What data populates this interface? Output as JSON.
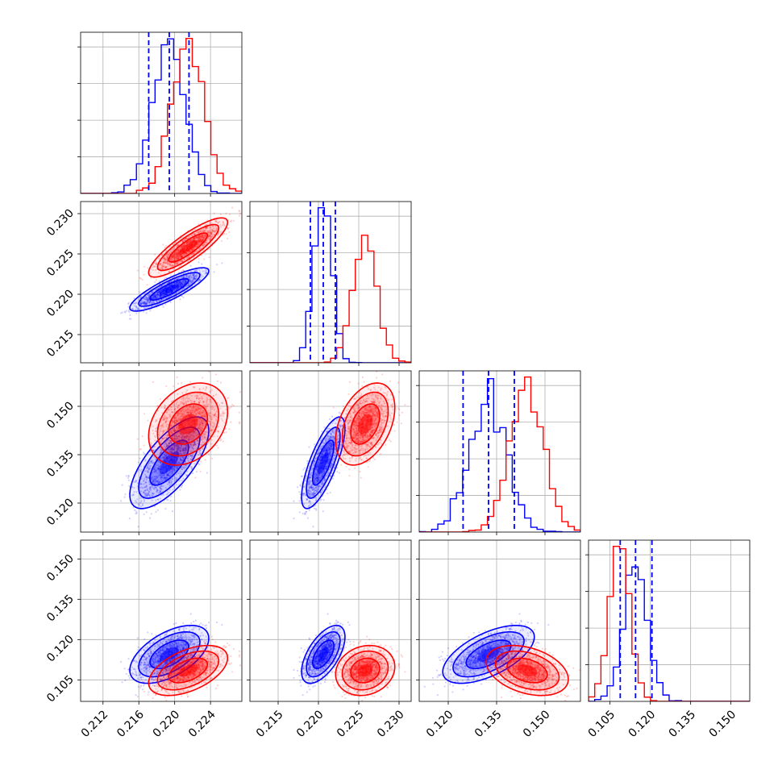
{
  "chart_data": {
    "type": "corner",
    "description_of_series_colors": {
      "blue": "#0000ff",
      "red": "#ff0000"
    },
    "grid": true,
    "parameters": [
      {
        "range": [
          0.2095,
          0.2275
        ],
        "ticks": [
          "0.212",
          "0.216",
          "0.220",
          "0.224"
        ],
        "tick_values": [
          0.212,
          0.216,
          0.22,
          0.224
        ]
      },
      {
        "range": [
          0.2115,
          0.2315
        ],
        "ticks": [
          "0.215",
          "0.220",
          "0.225",
          "0.230"
        ],
        "tick_values": [
          0.215,
          0.22,
          0.225,
          0.23
        ]
      },
      {
        "range": [
          0.111,
          0.161
        ],
        "ticks": [
          "0.120",
          "0.135",
          "0.150"
        ],
        "tick_values": [
          0.12,
          0.135,
          0.15
        ]
      },
      {
        "range": [
          0.097,
          0.157
        ],
        "ticks": [
          "0.105",
          "0.120",
          "0.135",
          "0.150"
        ],
        "tick_values": [
          0.105,
          0.12,
          0.135,
          0.15
        ]
      }
    ],
    "series": [
      {
        "color": "#0000ff",
        "means": [
          0.2194,
          0.2206,
          0.1325,
          0.1145
        ],
        "sds": [
          0.0018,
          0.0011,
          0.0058,
          0.0044
        ],
        "correlations": {
          "0-1": 0.85,
          "0-2": 0.7,
          "1-2": 0.75,
          "0-3": 0.55,
          "1-3": 0.6,
          "2-3": 0.6
        },
        "quantiles": [
          [
            0.2171,
            0.2194,
            0.2216
          ],
          [
            0.219,
            0.2206,
            0.2221
          ],
          [
            0.1246,
            0.1325,
            0.1405
          ],
          [
            0.1088,
            0.1145,
            0.1206
          ]
        ]
      },
      {
        "color": "#ff0000",
        "means": [
          0.2215,
          0.2258,
          0.1445,
          0.1085
        ],
        "sds": [
          0.0018,
          0.0015,
          0.0052,
          0.0038
        ],
        "correlations": {
          "0-1": 0.85,
          "0-2": 0.3,
          "1-2": 0.4,
          "0-3": 0.5,
          "1-3": 0.15,
          "2-3": -0.35
        }
      }
    ]
  }
}
